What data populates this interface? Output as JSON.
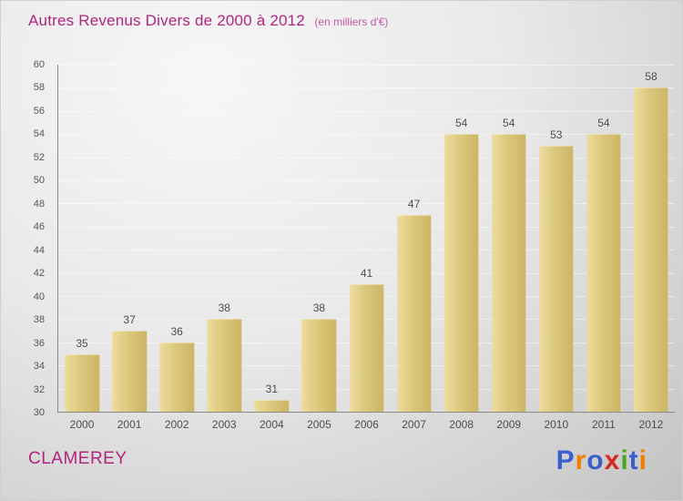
{
  "title": {
    "text": "Autres Revenus Divers de 2000 à 2012",
    "subtitle": "(en milliers d'€)"
  },
  "footer": {
    "org": "CLAMEREY"
  },
  "logo": {
    "name": "Proxiti",
    "letters": [
      {
        "ch": "P",
        "color": "#3a5fcd"
      },
      {
        "ch": "r",
        "color": "#f07f00"
      },
      {
        "ch": "o",
        "color": "#3a5fcd"
      },
      {
        "ch": "x",
        "color": "#d9261c"
      },
      {
        "ch": "i",
        "color": "#4aa520"
      },
      {
        "ch": "t",
        "color": "#3a5fcd"
      },
      {
        "ch": "i",
        "color": "#f07f00"
      }
    ]
  },
  "chart_data": {
    "type": "bar",
    "title": "Autres Revenus Divers de 2000 à 2012",
    "subtitle": "(en milliers d'€)",
    "categories": [
      "2000",
      "2001",
      "2002",
      "2003",
      "2004",
      "2005",
      "2006",
      "2007",
      "2008",
      "2009",
      "2010",
      "2011",
      "2012"
    ],
    "values": [
      35,
      37,
      36,
      38,
      31,
      38,
      41,
      47,
      54,
      54,
      53,
      54,
      58
    ],
    "xlabel": "",
    "ylabel": "",
    "ylim": [
      30,
      60
    ],
    "ytick_step": 2,
    "grid": "subtle horizontal white lines",
    "legend": "none",
    "bar_color_light": "#ecdc9c",
    "bar_color_dark": "#cdb462",
    "accent_color": "#b1247f"
  }
}
